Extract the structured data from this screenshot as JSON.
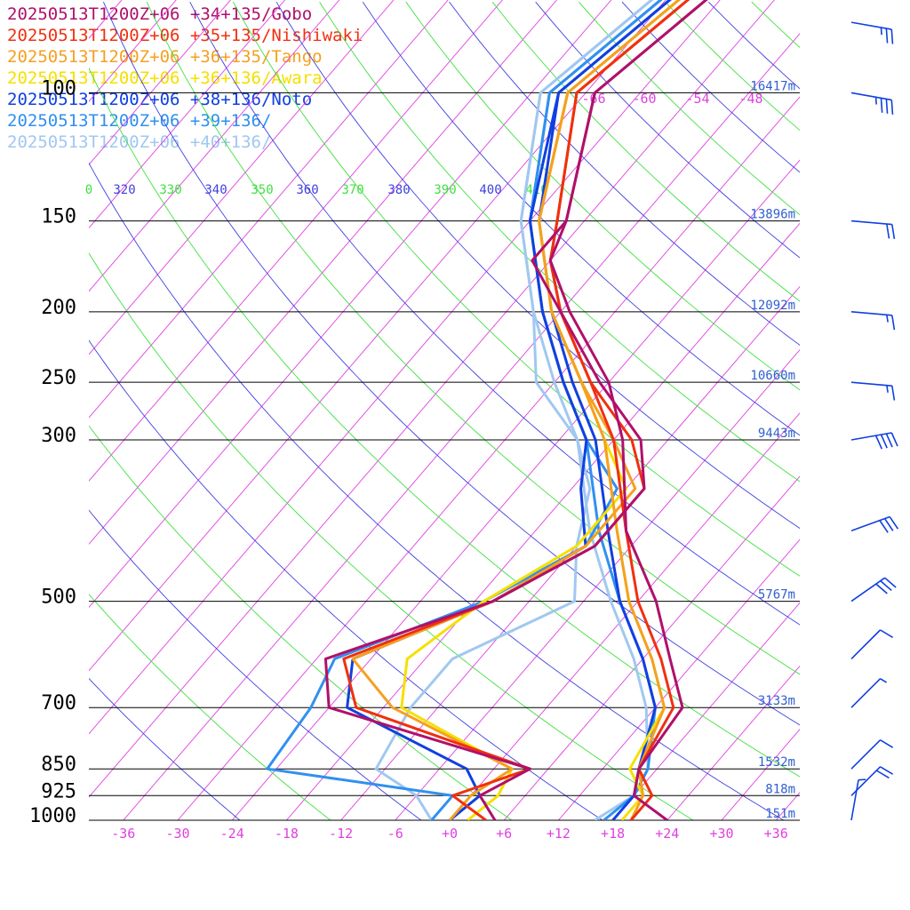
{
  "chart_data": {
    "type": "line",
    "title": "",
    "xlabel": "",
    "ylabel": "",
    "x_scale": "skewed temperature (°C)",
    "y_scale": "log pressure (hPa)",
    "xlim": [
      -40,
      40
    ],
    "ylim": [
      1000,
      70
    ],
    "grid": true,
    "legend_placement": "top-left",
    "pressure_ticks": [
      {
        "label": "100",
        "p": 100,
        "height_label": "16417m"
      },
      {
        "label": "150",
        "p": 150,
        "height_label": "13896m"
      },
      {
        "label": "200",
        "p": 200,
        "height_label": "12092m"
      },
      {
        "label": "250",
        "p": 250,
        "height_label": "10660m"
      },
      {
        "label": "300",
        "p": 300,
        "height_label": "9443m"
      },
      {
        "label": "500",
        "p": 500,
        "height_label": "5767m"
      },
      {
        "label": "700",
        "p": 700,
        "height_label": "3133m"
      },
      {
        "label": "850",
        "p": 850,
        "height_label": "1532m"
      },
      {
        "label": "925",
        "p": 925,
        "height_label": "818m"
      },
      {
        "label": "1000",
        "p": 1000,
        "height_label": "151m"
      }
    ],
    "temperature_ticks": [
      "-36",
      "-30",
      "-24",
      "-18",
      "-12",
      "-6",
      "+0",
      "+6",
      "+12",
      "+18",
      "+24",
      "+30",
      "+36"
    ],
    "upper_isotherm_labels": [
      "-66",
      "-60",
      "-54",
      "-48"
    ],
    "theta_labels": [
      "0",
      "320",
      "330",
      "340",
      "350",
      "360",
      "370",
      "380",
      "390",
      "400",
      "410"
    ],
    "series": [
      {
        "name": "20250513T1200Z+06 +34+135/Gobo",
        "color": "#b0106a",
        "temperature": [
          [
            1000,
            24
          ],
          [
            925,
            18
          ],
          [
            850,
            16
          ],
          [
            700,
            15
          ],
          [
            600,
            9
          ],
          [
            500,
            2
          ],
          [
            400,
            -8
          ],
          [
            300,
            -17
          ],
          [
            250,
            -24
          ],
          [
            200,
            -35
          ],
          [
            170,
            -42
          ],
          [
            150,
            -44
          ],
          [
            100,
            -53
          ]
        ],
        "dewpoint": [
          [
            1000,
            5
          ],
          [
            925,
            1
          ],
          [
            850,
            4
          ],
          [
            700,
            -24
          ],
          [
            600,
            -29
          ],
          [
            500,
            -16
          ],
          [
            420,
            -10
          ],
          [
            350,
            -10
          ],
          [
            300,
            -15
          ],
          [
            250,
            -25
          ],
          [
            200,
            -36
          ],
          [
            170,
            -44
          ],
          [
            150,
            -44
          ],
          [
            100,
            -53
          ]
        ]
      },
      {
        "name": "20250513T1200Z+06 +35+135/Nishiwaki",
        "color": "#f03010",
        "temperature": [
          [
            1000,
            20
          ],
          [
            925,
            20
          ],
          [
            850,
            16
          ],
          [
            700,
            14
          ],
          [
            600,
            8
          ],
          [
            500,
            0
          ],
          [
            400,
            -8
          ],
          [
            300,
            -18
          ],
          [
            250,
            -26
          ],
          [
            200,
            -36
          ],
          [
            170,
            -42
          ],
          [
            150,
            -45
          ],
          [
            100,
            -55
          ]
        ],
        "dewpoint": [
          [
            1000,
            4
          ],
          [
            925,
            -2
          ],
          [
            850,
            4
          ],
          [
            700,
            -21
          ],
          [
            600,
            -27
          ],
          [
            500,
            -16
          ],
          [
            420,
            -10
          ],
          [
            350,
            -10
          ],
          [
            300,
            -16
          ],
          [
            250,
            -26
          ],
          [
            200,
            -36
          ],
          [
            170,
            -42
          ],
          [
            150,
            -45
          ],
          [
            100,
            -55
          ]
        ]
      },
      {
        "name": "20250513T1200Z+06 +36+135/Tango",
        "color": "#f5a020",
        "temperature": [
          [
            1000,
            20
          ],
          [
            925,
            19
          ],
          [
            850,
            16
          ],
          [
            700,
            13
          ],
          [
            600,
            7
          ],
          [
            500,
            -1
          ],
          [
            400,
            -9
          ],
          [
            300,
            -19
          ],
          [
            250,
            -27
          ],
          [
            200,
            -37
          ],
          [
            150,
            -47
          ],
          [
            100,
            -56
          ]
        ],
        "dewpoint": [
          [
            1000,
            0
          ],
          [
            925,
            0
          ],
          [
            850,
            2
          ],
          [
            700,
            -17
          ],
          [
            600,
            -26
          ],
          [
            500,
            -16
          ],
          [
            420,
            -11
          ],
          [
            350,
            -11
          ],
          [
            300,
            -18
          ],
          [
            250,
            -27
          ],
          [
            200,
            -37
          ],
          [
            150,
            -47
          ],
          [
            100,
            -56
          ]
        ]
      },
      {
        "name": "20250513T1200Z+06 +36+136/Awara",
        "color": "#f5e000",
        "temperature": [
          [
            1000,
            19
          ],
          [
            925,
            19
          ],
          [
            850,
            15
          ],
          [
            700,
            13
          ],
          [
            600,
            7
          ],
          [
            500,
            -1
          ],
          [
            400,
            -9
          ],
          [
            300,
            -19
          ],
          [
            250,
            -27
          ],
          [
            200,
            -37
          ],
          [
            150,
            -47
          ],
          [
            100,
            -56
          ]
        ],
        "dewpoint": [
          [
            1000,
            2
          ],
          [
            925,
            3
          ],
          [
            850,
            2
          ],
          [
            700,
            -16
          ],
          [
            600,
            -20
          ],
          [
            500,
            -17
          ],
          [
            420,
            -12
          ],
          [
            350,
            -12
          ],
          [
            300,
            -19
          ],
          [
            250,
            -27
          ],
          [
            200,
            -37
          ],
          [
            150,
            -47
          ],
          [
            100,
            -56
          ]
        ]
      },
      {
        "name": "20250513T1200Z+06 +38+136/Noto",
        "color": "#1040e0",
        "temperature": [
          [
            1000,
            18
          ],
          [
            925,
            18
          ],
          [
            850,
            16
          ],
          [
            700,
            12
          ],
          [
            600,
            6
          ],
          [
            500,
            -2
          ],
          [
            400,
            -10
          ],
          [
            300,
            -20
          ],
          [
            250,
            -28
          ],
          [
            200,
            -37
          ],
          [
            150,
            -47
          ],
          [
            100,
            -57
          ]
        ],
        "dewpoint": [
          [
            1000,
            0
          ],
          [
            925,
            1
          ],
          [
            850,
            -3
          ],
          [
            700,
            -22
          ],
          [
            600,
            -26
          ],
          [
            500,
            -16
          ],
          [
            420,
            -11
          ],
          [
            350,
            -17
          ],
          [
            300,
            -21
          ],
          [
            250,
            -29
          ],
          [
            200,
            -38
          ],
          [
            150,
            -48
          ],
          [
            100,
            -57
          ]
        ]
      },
      {
        "name": "20250513T1200Z+06 +39+136/",
        "color": "#3090f0",
        "temperature": [
          [
            1000,
            17
          ],
          [
            925,
            18
          ],
          [
            850,
            17
          ],
          [
            700,
            12
          ],
          [
            600,
            6
          ],
          [
            500,
            -2
          ],
          [
            400,
            -11
          ],
          [
            300,
            -21
          ],
          [
            250,
            -29
          ],
          [
            200,
            -38
          ],
          [
            150,
            -48
          ],
          [
            100,
            -58
          ]
        ],
        "dewpoint": [
          [
            1000,
            -2
          ],
          [
            925,
            -2
          ],
          [
            850,
            -25
          ],
          [
            700,
            -26
          ],
          [
            600,
            -28
          ],
          [
            500,
            -17
          ],
          [
            420,
            -11
          ],
          [
            350,
            -13
          ],
          [
            300,
            -21
          ],
          [
            250,
            -29
          ],
          [
            200,
            -38
          ],
          [
            150,
            -48
          ],
          [
            100,
            -58
          ]
        ]
      },
      {
        "name": "20250513T1200Z+06 +40+136/",
        "color": "#a0c8f0",
        "temperature": [
          [
            1000,
            16
          ],
          [
            925,
            18
          ],
          [
            850,
            17
          ],
          [
            700,
            11
          ],
          [
            600,
            5
          ],
          [
            500,
            -3
          ],
          [
            400,
            -12
          ],
          [
            300,
            -22
          ],
          [
            250,
            -30
          ],
          [
            200,
            -39
          ],
          [
            150,
            -49
          ],
          [
            100,
            -59
          ]
        ],
        "dewpoint": [
          [
            1000,
            -2
          ],
          [
            925,
            -6
          ],
          [
            850,
            -13
          ],
          [
            700,
            -15
          ],
          [
            600,
            -15
          ],
          [
            500,
            -7
          ],
          [
            420,
            -12
          ],
          [
            350,
            -16
          ],
          [
            300,
            -22
          ],
          [
            250,
            -32
          ],
          [
            200,
            -39
          ],
          [
            150,
            -49
          ],
          [
            100,
            -59
          ]
        ]
      }
    ],
    "wind_barbs": [
      {
        "p": 80,
        "speed_kt": 25,
        "dir_deg": 280
      },
      {
        "p": 100,
        "speed_kt": 35,
        "dir_deg": 280
      },
      {
        "p": 150,
        "speed_kt": 20,
        "dir_deg": 275
      },
      {
        "p": 200,
        "speed_kt": 15,
        "dir_deg": 275
      },
      {
        "p": 250,
        "speed_kt": 15,
        "dir_deg": 275
      },
      {
        "p": 300,
        "speed_kt": 40,
        "dir_deg": 260
      },
      {
        "p": 400,
        "speed_kt": 30,
        "dir_deg": 250
      },
      {
        "p": 500,
        "speed_kt": 30,
        "dir_deg": 235
      },
      {
        "p": 600,
        "speed_kt": 10,
        "dir_deg": 225
      },
      {
        "p": 700,
        "speed_kt": 5,
        "dir_deg": 225
      },
      {
        "p": 850,
        "speed_kt": 10,
        "dir_deg": 225
      },
      {
        "p": 925,
        "speed_kt": 20,
        "dir_deg": 225
      },
      {
        "p": 1000,
        "speed_kt": 5,
        "dir_deg": 190
      }
    ],
    "colors": {
      "isobar": "#000000",
      "isotherm": "#e040e0",
      "dry_adiabat": "#4040e0",
      "moist_adiabat": "#40e040",
      "height_label": "#3060d0",
      "temp_tick_label": "#e040e0",
      "wind_barb": "#1040e0"
    }
  }
}
